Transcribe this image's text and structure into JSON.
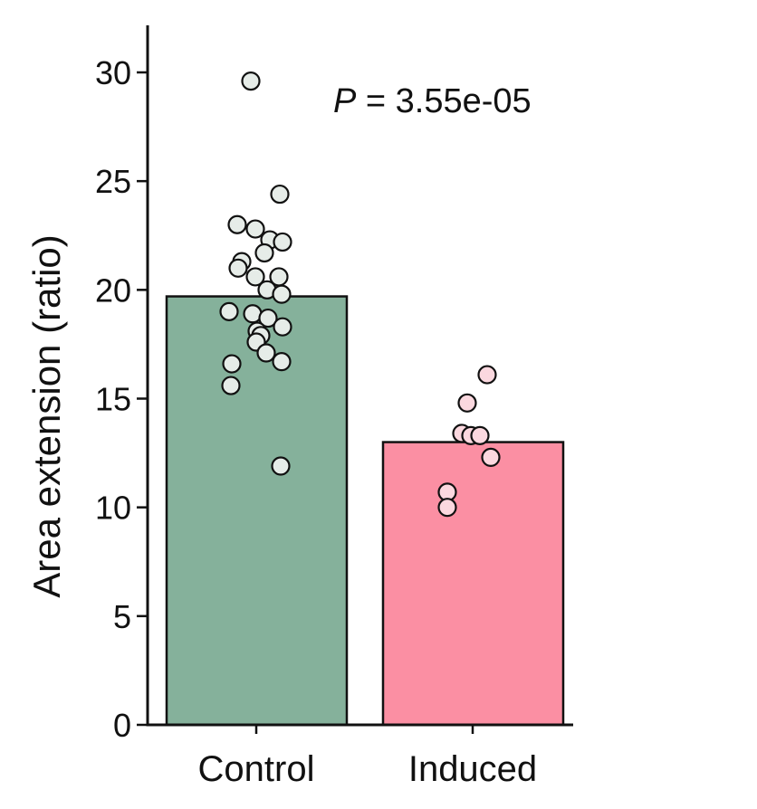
{
  "chart_data": {
    "type": "bar",
    "categories": [
      "Control",
      "Induced"
    ],
    "values": [
      19.7,
      13.0
    ],
    "ylabel": "Area extension (ratio)",
    "xlabel": "",
    "ylim": [
      0,
      32
    ],
    "yticks": [
      "0",
      "5",
      "10",
      "15",
      "20",
      "25",
      "30"
    ],
    "annotation": {
      "label": "P",
      "text": " = 3.55e-05"
    },
    "colors": {
      "Control": "#85b19b",
      "Induced": "#fb8fa3",
      "Control_point": "#e6ece8",
      "Induced_point": "#fbd8df"
    },
    "points": {
      "Control": [
        29.6,
        24.4,
        23.0,
        22.8,
        22.3,
        22.2,
        21.7,
        21.3,
        21.0,
        20.6,
        20.6,
        20.0,
        19.8,
        19.0,
        18.9,
        18.7,
        18.3,
        18.1,
        17.9,
        17.6,
        17.1,
        16.7,
        16.6,
        15.6,
        11.9
      ],
      "Induced": [
        16.1,
        14.8,
        13.4,
        13.3,
        13.3,
        12.3,
        10.7,
        10.0
      ]
    },
    "grid": false,
    "legend": "none"
  }
}
